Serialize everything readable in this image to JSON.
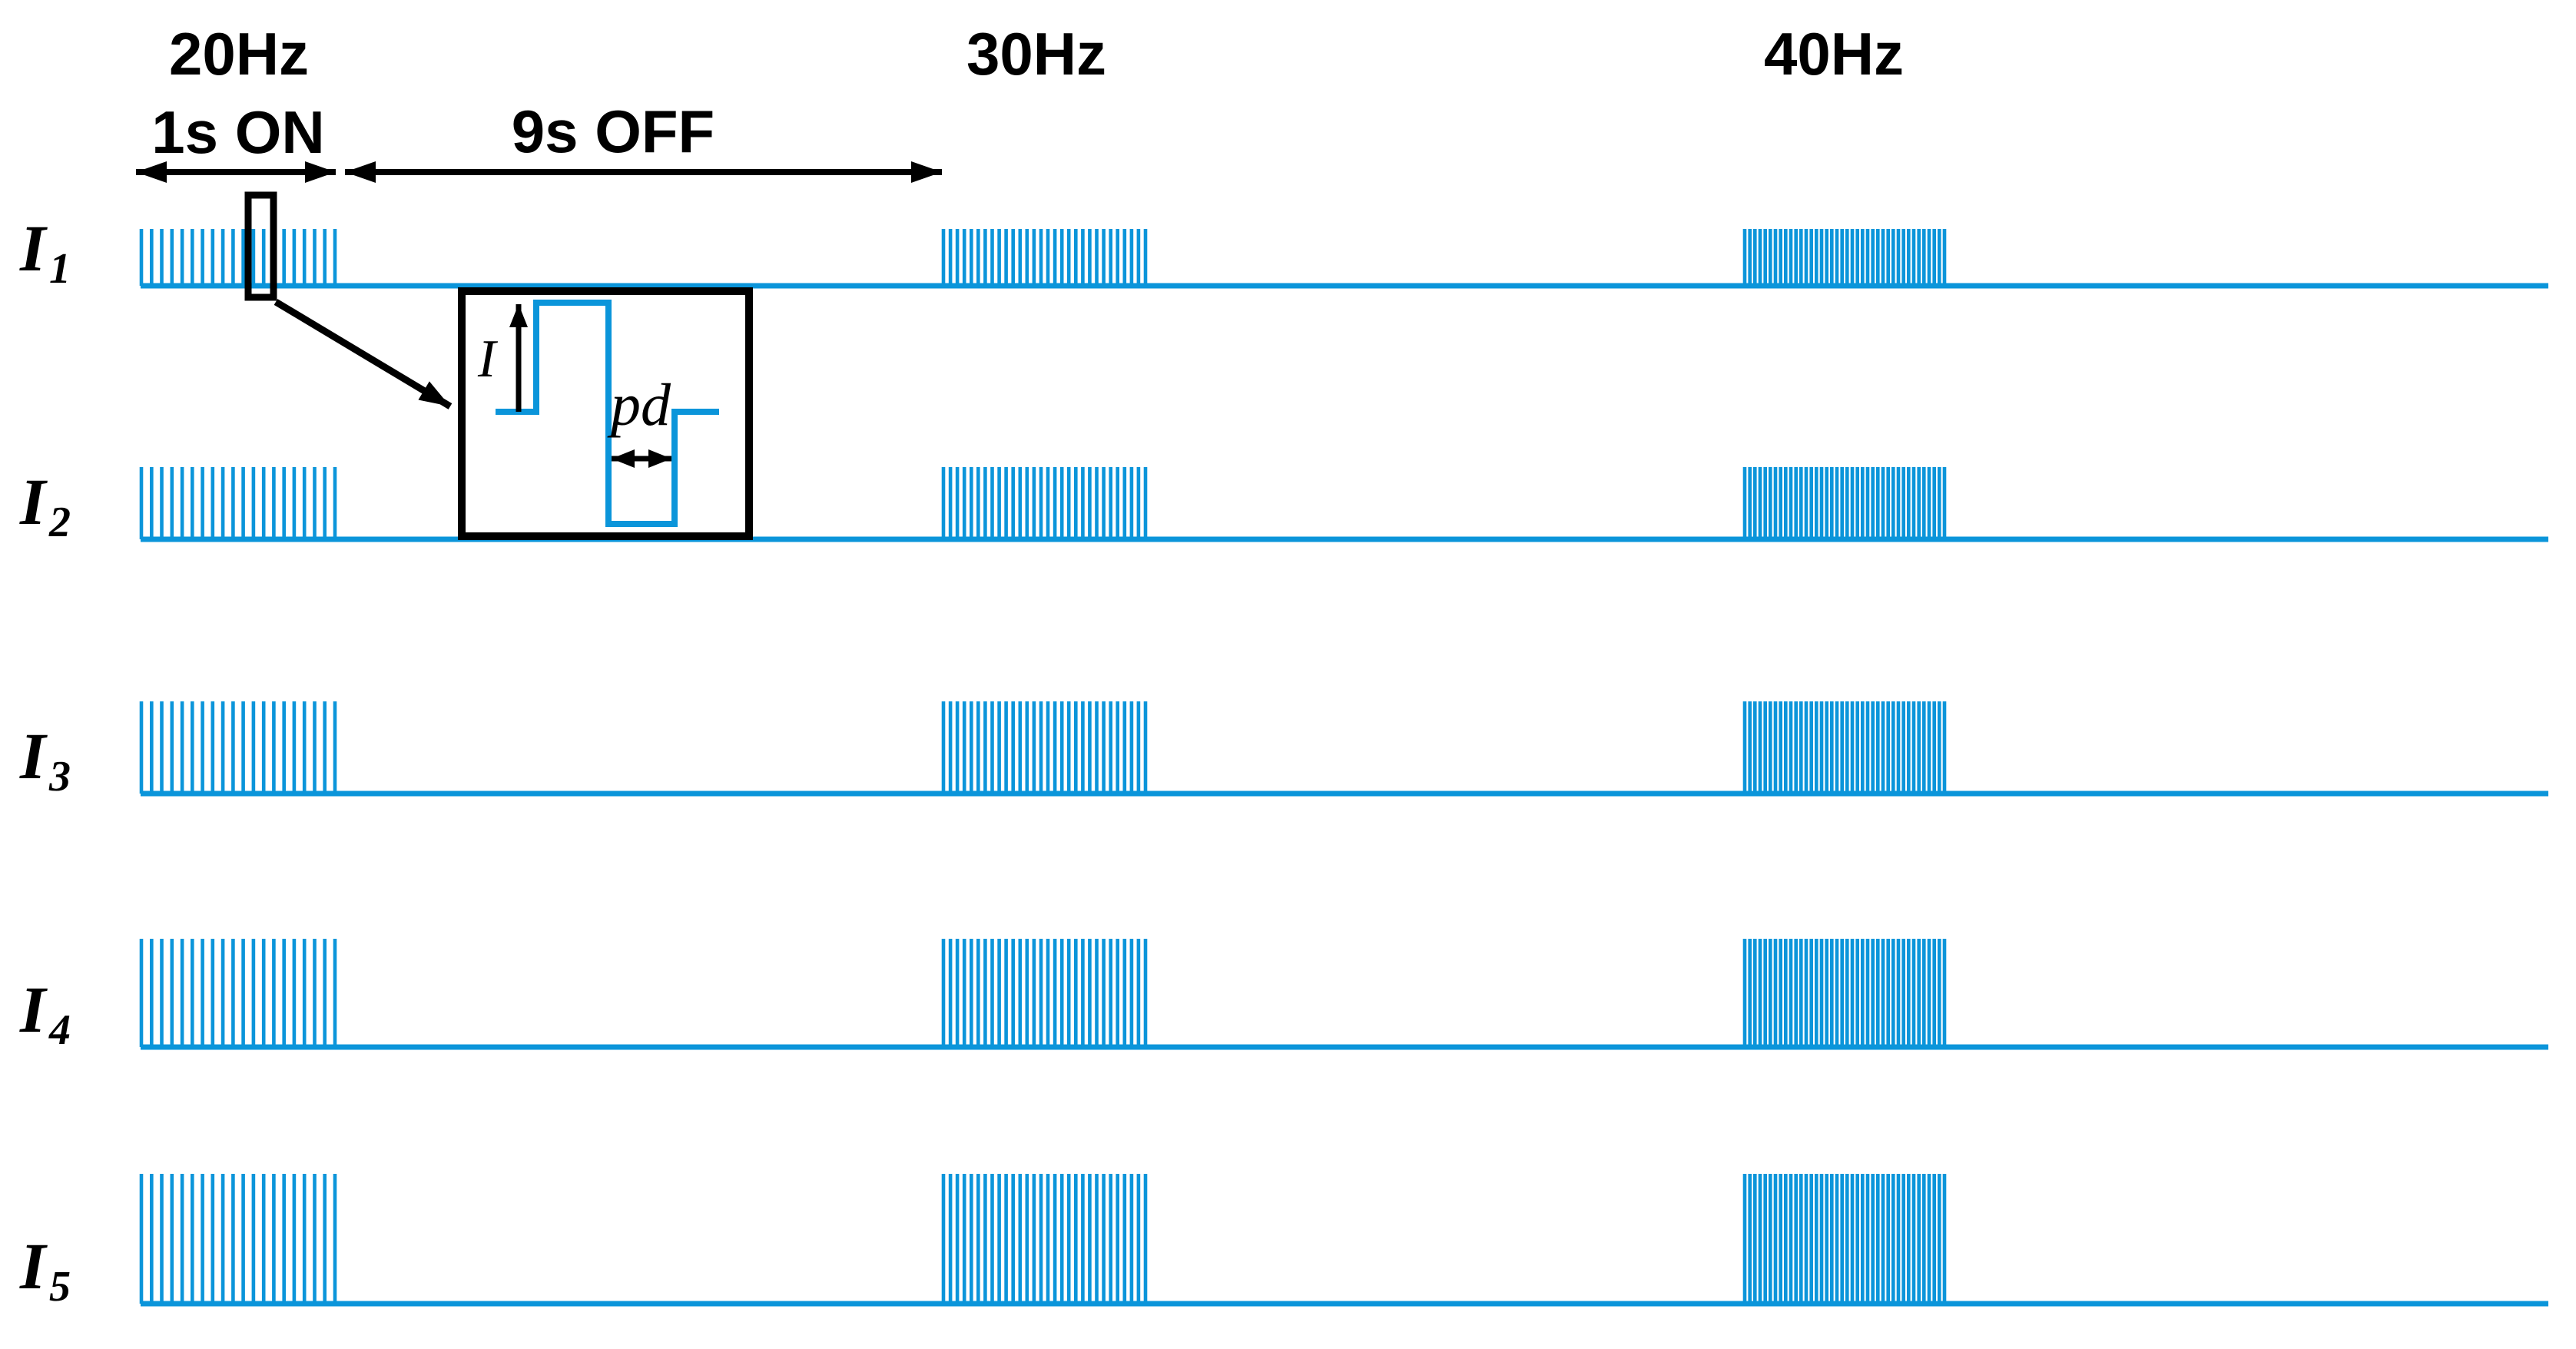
{
  "diagram": {
    "columns": [
      {
        "freq_label": "20Hz",
        "pulse_count": 20
      },
      {
        "freq_label": "30Hz",
        "pulse_count": 30
      },
      {
        "freq_label": "40Hz",
        "pulse_count": 40
      }
    ],
    "timing": {
      "on_label": "1s ON",
      "off_label": "9s OFF"
    },
    "rows": [
      {
        "label": "I",
        "subscript": "1"
      },
      {
        "label": "I",
        "subscript": "2"
      },
      {
        "label": "I",
        "subscript": "3"
      },
      {
        "label": "I",
        "subscript": "4"
      },
      {
        "label": "I",
        "subscript": "5"
      }
    ],
    "inset": {
      "amplitude_label": "I",
      "pulse_duration_label": "pd"
    },
    "protocol": {
      "frequencies_hz": [
        20,
        30,
        40
      ],
      "train_on_seconds": 1,
      "train_off_seconds": 9,
      "amplitude_levels": [
        "I1",
        "I2",
        "I3",
        "I4",
        "I5"
      ]
    },
    "colors": {
      "trace": "#0b95da",
      "annotation": "#000000",
      "background": "#ffffff"
    }
  }
}
